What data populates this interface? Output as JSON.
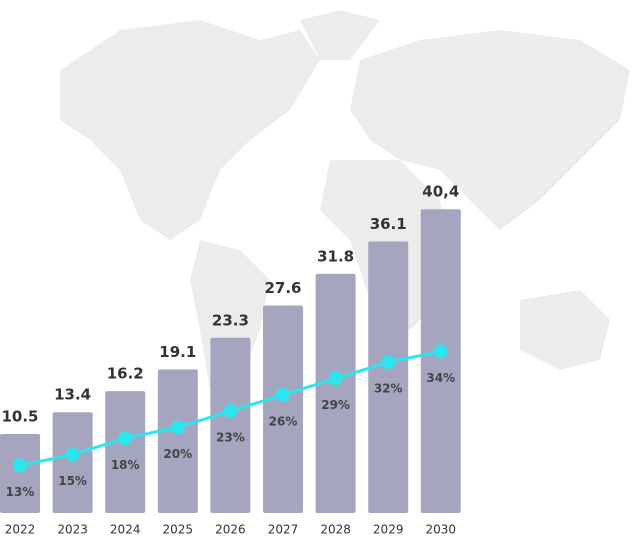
{
  "chart_data": {
    "type": "bar",
    "categories": [
      "2022",
      "2023",
      "2024",
      "2025",
      "2026",
      "2027",
      "2028",
      "2029",
      "2030"
    ],
    "series": [
      {
        "type": "bar",
        "color": "#a6a5bf",
        "values": [
          10.5,
          13.4,
          16.2,
          19.1,
          23.3,
          27.6,
          31.8,
          36.1,
          40.4
        ],
        "value_labels": [
          "10.5",
          "13.4",
          "16.2",
          "19.1",
          "23.3",
          "27.6",
          "31.8",
          "36.1",
          "40,4"
        ]
      },
      {
        "type": "line",
        "color": "#2ce6ef",
        "values": [
          13,
          15,
          18,
          20,
          23,
          26,
          29,
          32,
          34
        ],
        "value_labels": [
          "13%",
          "15%",
          "18%",
          "20%",
          "23%",
          "26%",
          "29%",
          "32%",
          "34%"
        ]
      }
    ]
  }
}
